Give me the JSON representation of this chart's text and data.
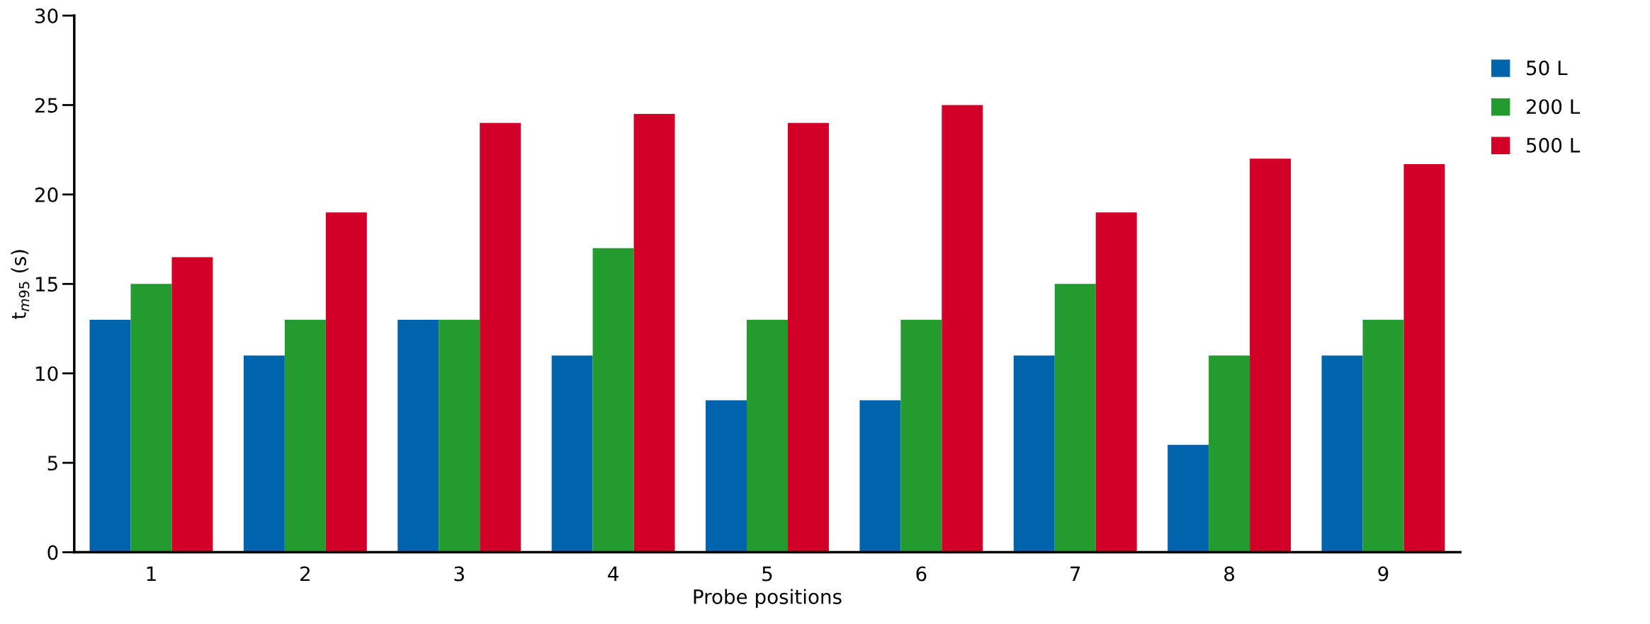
{
  "chart_data": {
    "type": "bar",
    "xlabel": "Probe positions",
    "ylabel": "t$_{m95}$ (s)",
    "categories": [
      "1",
      "2",
      "3",
      "4",
      "5",
      "6",
      "7",
      "8",
      "9"
    ],
    "series": [
      {
        "name": "50 L",
        "color": "#0064ad",
        "values": [
          13,
          11,
          13,
          11,
          8.5,
          8.5,
          11,
          6,
          11
        ]
      },
      {
        "name": "200 L",
        "color": "#249b2e",
        "values": [
          15,
          13,
          13,
          17,
          13,
          13,
          15,
          11,
          13
        ]
      },
      {
        "name": "500 L",
        "color": "#d20029",
        "values": [
          16.5,
          19,
          24,
          24.5,
          24,
          25,
          19,
          22,
          21.7
        ]
      }
    ],
    "ylim": [
      0,
      30
    ],
    "yticks": [
      0,
      5,
      10,
      15,
      20,
      25,
      30
    ],
    "grid": false,
    "legend": "top right"
  }
}
